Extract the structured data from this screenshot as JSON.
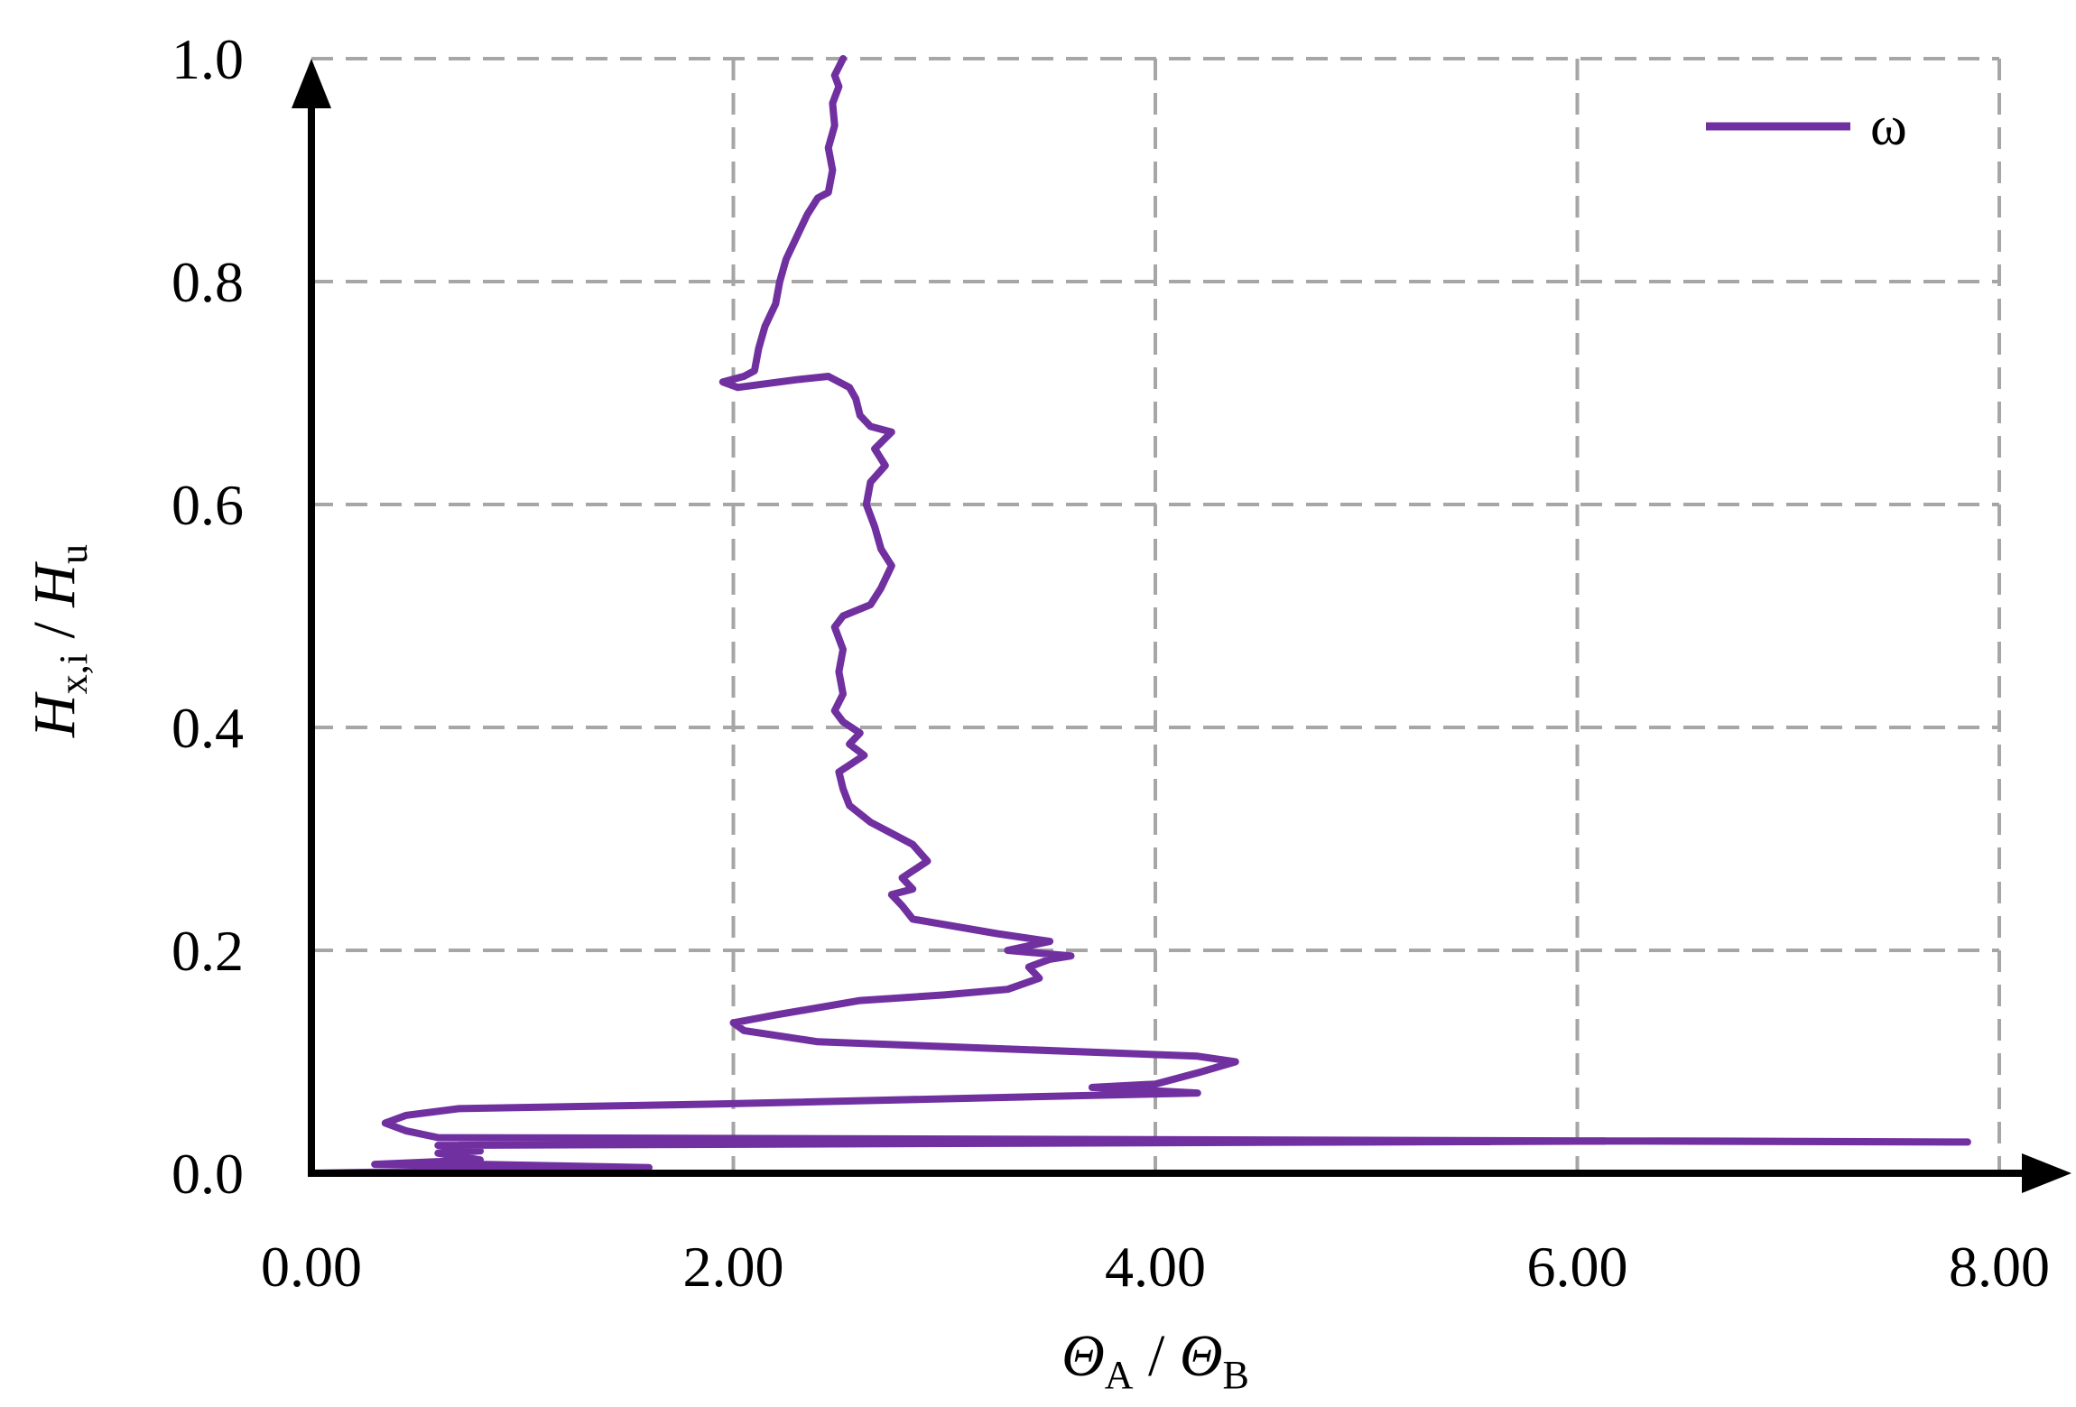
{
  "chart_data": {
    "type": "line",
    "title": "",
    "xlabel": {
      "main_1": "Θ",
      "sub_1": "A",
      "sep": " / ",
      "main_2": "Θ",
      "sub_2": "B"
    },
    "ylabel": {
      "main_1": "H",
      "sub_1": "x,i",
      "sep": " / ",
      "main_2": "H",
      "sub_2": "u"
    },
    "xlim": [
      0,
      8
    ],
    "ylim": [
      0,
      1
    ],
    "x_ticks": [
      "0.00",
      "2.00",
      "4.00",
      "6.00",
      "8.00"
    ],
    "y_ticks": [
      "0.0",
      "0.2",
      "0.4",
      "0.6",
      "0.8",
      "1.0"
    ],
    "grid": true,
    "legend_position": "top-right",
    "colors": {
      "series": "#7030A0",
      "grid": "#A6A6A6",
      "axis": "#000000"
    },
    "series": [
      {
        "name": "ω",
        "points": [
          [
            0.0,
            0.0
          ],
          [
            1.6,
            0.005
          ],
          [
            0.8,
            0.008
          ],
          [
            0.3,
            0.008
          ],
          [
            0.8,
            0.012
          ],
          [
            0.6,
            0.018
          ],
          [
            0.8,
            0.02
          ],
          [
            0.6,
            0.025
          ],
          [
            6.4,
            0.029
          ],
          [
            7.85,
            0.028
          ],
          [
            0.6,
            0.032
          ],
          [
            0.45,
            0.038
          ],
          [
            0.35,
            0.045
          ],
          [
            0.45,
            0.052
          ],
          [
            0.7,
            0.058
          ],
          [
            1.9,
            0.062
          ],
          [
            4.2,
            0.072
          ],
          [
            3.7,
            0.077
          ],
          [
            4.0,
            0.08
          ],
          [
            4.2,
            0.09
          ],
          [
            4.38,
            0.1
          ],
          [
            4.2,
            0.105
          ],
          [
            2.4,
            0.118
          ],
          [
            2.05,
            0.128
          ],
          [
            2.0,
            0.135
          ],
          [
            2.2,
            0.142
          ],
          [
            2.6,
            0.155
          ],
          [
            3.0,
            0.16
          ],
          [
            3.3,
            0.165
          ],
          [
            3.45,
            0.175
          ],
          [
            3.4,
            0.185
          ],
          [
            3.5,
            0.192
          ],
          [
            3.6,
            0.195
          ],
          [
            3.3,
            0.2
          ],
          [
            3.5,
            0.208
          ],
          [
            3.25,
            0.215
          ],
          [
            2.85,
            0.228
          ],
          [
            2.8,
            0.24
          ],
          [
            2.75,
            0.25
          ],
          [
            2.85,
            0.255
          ],
          [
            2.8,
            0.265
          ],
          [
            2.92,
            0.28
          ],
          [
            2.85,
            0.295
          ],
          [
            2.75,
            0.305
          ],
          [
            2.65,
            0.315
          ],
          [
            2.55,
            0.33
          ],
          [
            2.52,
            0.345
          ],
          [
            2.5,
            0.36
          ],
          [
            2.62,
            0.375
          ],
          [
            2.55,
            0.385
          ],
          [
            2.6,
            0.395
          ],
          [
            2.52,
            0.405
          ],
          [
            2.48,
            0.415
          ],
          [
            2.52,
            0.43
          ],
          [
            2.5,
            0.45
          ],
          [
            2.52,
            0.47
          ],
          [
            2.48,
            0.49
          ],
          [
            2.52,
            0.5
          ],
          [
            2.65,
            0.51
          ],
          [
            2.7,
            0.525
          ],
          [
            2.75,
            0.545
          ],
          [
            2.7,
            0.56
          ],
          [
            2.67,
            0.58
          ],
          [
            2.63,
            0.6
          ],
          [
            2.65,
            0.62
          ],
          [
            2.72,
            0.635
          ],
          [
            2.67,
            0.65
          ],
          [
            2.75,
            0.665
          ],
          [
            2.65,
            0.67
          ],
          [
            2.6,
            0.68
          ],
          [
            2.58,
            0.695
          ],
          [
            2.55,
            0.705
          ],
          [
            2.45,
            0.715
          ],
          [
            2.3,
            0.712
          ],
          [
            2.02,
            0.705
          ],
          [
            1.95,
            0.71
          ],
          [
            2.05,
            0.715
          ],
          [
            2.1,
            0.72
          ],
          [
            2.12,
            0.74
          ],
          [
            2.15,
            0.76
          ],
          [
            2.2,
            0.78
          ],
          [
            2.22,
            0.8
          ],
          [
            2.25,
            0.82
          ],
          [
            2.3,
            0.84
          ],
          [
            2.35,
            0.86
          ],
          [
            2.4,
            0.875
          ],
          [
            2.45,
            0.88
          ],
          [
            2.47,
            0.9
          ],
          [
            2.45,
            0.92
          ],
          [
            2.48,
            0.94
          ],
          [
            2.47,
            0.96
          ],
          [
            2.5,
            0.975
          ],
          [
            2.48,
            0.985
          ],
          [
            2.52,
            1.0
          ]
        ]
      }
    ]
  }
}
